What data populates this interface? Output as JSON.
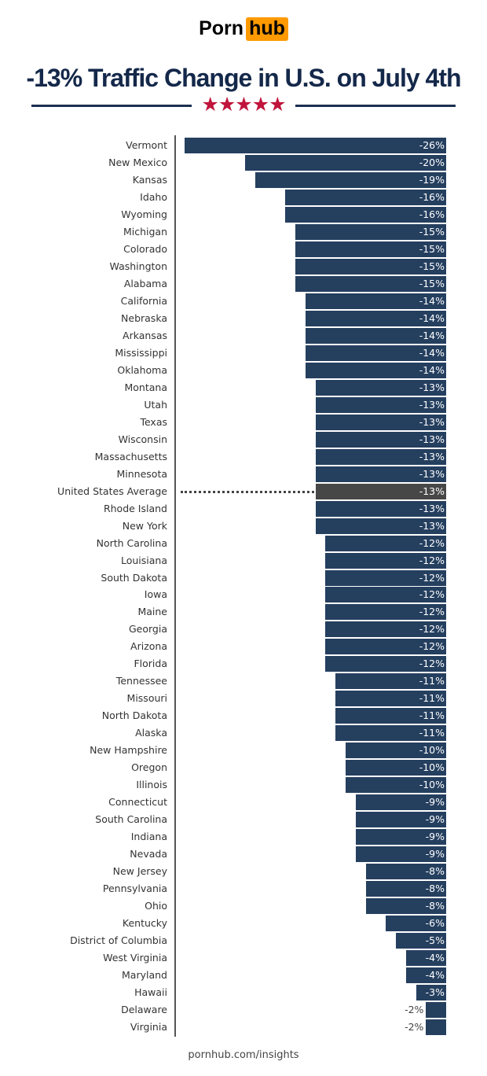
{
  "logo": {
    "part1": "Porn",
    "part2": "hub"
  },
  "title": "-13% Traffic Change in U.S. on July 4th",
  "stars": "★★★★★",
  "footer": "pornhub.com/insights",
  "colors": {
    "bar": "#253f5f",
    "average_bar": "#474747",
    "title": "#14284a",
    "stars": "#c0143c",
    "logo_accent": "#ff9900"
  },
  "chart_data": {
    "type": "bar",
    "orientation": "horizontal",
    "title": "-13% Traffic Change in U.S. on July 4th",
    "value_unit": "%",
    "highlight": "United States Average",
    "categories": [
      "Vermont",
      "New Mexico",
      "Kansas",
      "Idaho",
      "Wyoming",
      "Michigan",
      "Colorado",
      "Washington",
      "Alabama",
      "California",
      "Nebraska",
      "Arkansas",
      "Mississippi",
      "Oklahoma",
      "Montana",
      "Utah",
      "Texas",
      "Wisconsin",
      "Massachusetts",
      "Minnesota",
      "United States Average",
      "Rhode Island",
      "New York",
      "North Carolina",
      "Louisiana",
      "South Dakota",
      "Iowa",
      "Maine",
      "Georgia",
      "Arizona",
      "Florida",
      "Tennessee",
      "Missouri",
      "North Dakota",
      "Alaska",
      "New Hampshire",
      "Oregon",
      "Illinois",
      "Connecticut",
      "South Carolina",
      "Indiana",
      "Nevada",
      "New Jersey",
      "Pennsylvania",
      "Ohio",
      "Kentucky",
      "District of Columbia",
      "West Virginia",
      "Maryland",
      "Hawaii",
      "Delaware",
      "Virginia"
    ],
    "values": [
      -26,
      -20,
      -19,
      -16,
      -16,
      -15,
      -15,
      -15,
      -15,
      -14,
      -14,
      -14,
      -14,
      -14,
      -13,
      -13,
      -13,
      -13,
      -13,
      -13,
      -13,
      -13,
      -13,
      -12,
      -12,
      -12,
      -12,
      -12,
      -12,
      -12,
      -12,
      -11,
      -11,
      -11,
      -11,
      -10,
      -10,
      -10,
      -9,
      -9,
      -9,
      -9,
      -8,
      -8,
      -8,
      -6,
      -5,
      -4,
      -4,
      -3,
      -2,
      -2
    ],
    "labels": [
      "-26%",
      "-20%",
      "-19%",
      "-16%",
      "-16%",
      "-15%",
      "-15%",
      "-15%",
      "-15%",
      "-14%",
      "-14%",
      "-14%",
      "-14%",
      "-14%",
      "-13%",
      "-13%",
      "-13%",
      "-13%",
      "-13%",
      "-13%",
      "-13%",
      "-13%",
      "-13%",
      "-12%",
      "-12%",
      "-12%",
      "-12%",
      "-12%",
      "-12%",
      "-12%",
      "-12%",
      "-11%",
      "-11%",
      "-11%",
      "-11%",
      "-10%",
      "-10%",
      "-10%",
      "-9%",
      "-9%",
      "-9%",
      "-9%",
      "-8%",
      "-8%",
      "-8%",
      "-6%",
      "-5%",
      "-4%",
      "-4%",
      "-3%",
      "-2%",
      "-2%"
    ]
  }
}
